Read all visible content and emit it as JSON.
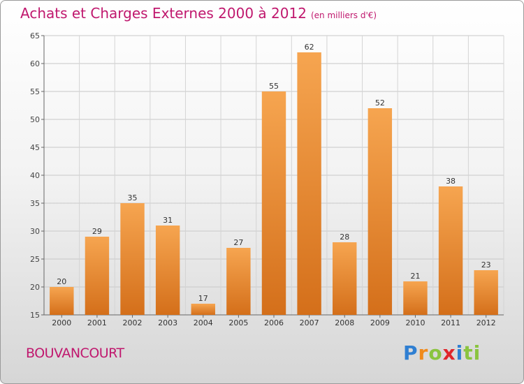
{
  "header": {
    "title": "Achats et Charges Externes 2000 à 2012",
    "unit": "(en milliers d'€)"
  },
  "footer": {
    "commune": "BOUVANCOURT",
    "brand_letters": [
      "P",
      "r",
      "o",
      "x",
      "i",
      "ti"
    ]
  },
  "colors": {
    "accent": "#c0186e",
    "bar_top": "#f6a550",
    "bar_bottom": "#d46f1a"
  },
  "chart_data": {
    "type": "bar",
    "title": "Achats et Charges Externes 2000 à 2012",
    "subtitle": "(en milliers d'€)",
    "categories": [
      "2000",
      "2001",
      "2002",
      "2003",
      "2004",
      "2005",
      "2006",
      "2007",
      "2008",
      "2009",
      "2010",
      "2011",
      "2012"
    ],
    "values": [
      20,
      29,
      35,
      31,
      17,
      27,
      55,
      62,
      28,
      52,
      21,
      38,
      23
    ],
    "ylim": [
      15,
      65
    ],
    "yticks": [
      15,
      20,
      25,
      30,
      35,
      40,
      45,
      50,
      55,
      60,
      65
    ],
    "grid": true,
    "xlabel": "",
    "ylabel": ""
  }
}
